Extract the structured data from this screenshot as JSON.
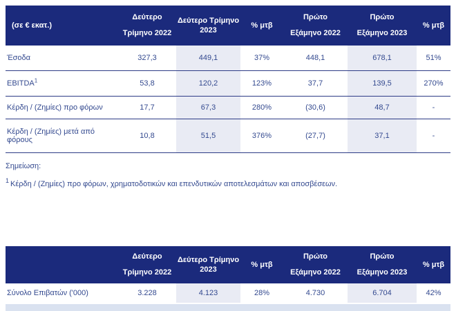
{
  "colors": {
    "header_bg": "#1b2a7c",
    "shaded_column_bg": "#e9ebf4",
    "body_text": "#33498f",
    "row_divider": "#2c3a85",
    "bottom_strip": "#dae2f0"
  },
  "table1": {
    "headers": {
      "unit": "(σε € εκατ.)",
      "q2_2022": "Δεύτερο\nΤρίμηνο 2022",
      "q2_2023": "Δεύτερο Τρίμηνο\n2023",
      "pct_q": "% μτβ",
      "h1_2022": "Πρώτο\nΕξάμηνο 2022",
      "h1_2023": "Πρώτο\nΕξάμηνο 2023",
      "pct_h": "% μτβ"
    },
    "rows": [
      {
        "label": "Έσοδα",
        "values": [
          "327,3",
          "449,1",
          "37%",
          "448,1",
          "678,1",
          "51%"
        ]
      },
      {
        "label": "EBITDA",
        "label_sup": "1",
        "values": [
          "53,8",
          "120,2",
          "123%",
          "37,7",
          "139,5",
          "270%"
        ]
      },
      {
        "label": "Κέρδη / (Ζημίες) προ φόρων",
        "values": [
          "17,7",
          "67,3",
          "280%",
          "(30,6)",
          "48,7",
          "-"
        ]
      },
      {
        "label": "Κέρδη / (Ζημίες) μετά από φόρους",
        "values": [
          "10,8",
          "51,5",
          "376%",
          "(27,7)",
          "37,1",
          "-"
        ]
      }
    ]
  },
  "note": {
    "title": "Σημείωση:",
    "sup": "1",
    "text": "Κέρδη / (Ζημίες) προ φόρων, χρηματοδοτικών και επενδυτικών αποτελεσμάτων και αποσβέσεων."
  },
  "table2": {
    "headers": {
      "unit": "",
      "q2_2022": "Δεύτερο\nΤρίμηνο 2022",
      "q2_2023": "Δεύτερο Τρίμηνο\n2023",
      "pct_q": "% μτβ",
      "h1_2022": "Πρώτο\nΕξάμηνο 2022",
      "h1_2023": "Πρώτο\nΕξάμηνο 2023",
      "pct_h": "% μτβ"
    },
    "rows": [
      {
        "label": "Σύνολο Επιβατών ('000)",
        "values": [
          "3.228",
          "4.123",
          "28%",
          "4.730",
          "6.704",
          "42%"
        ]
      }
    ]
  }
}
